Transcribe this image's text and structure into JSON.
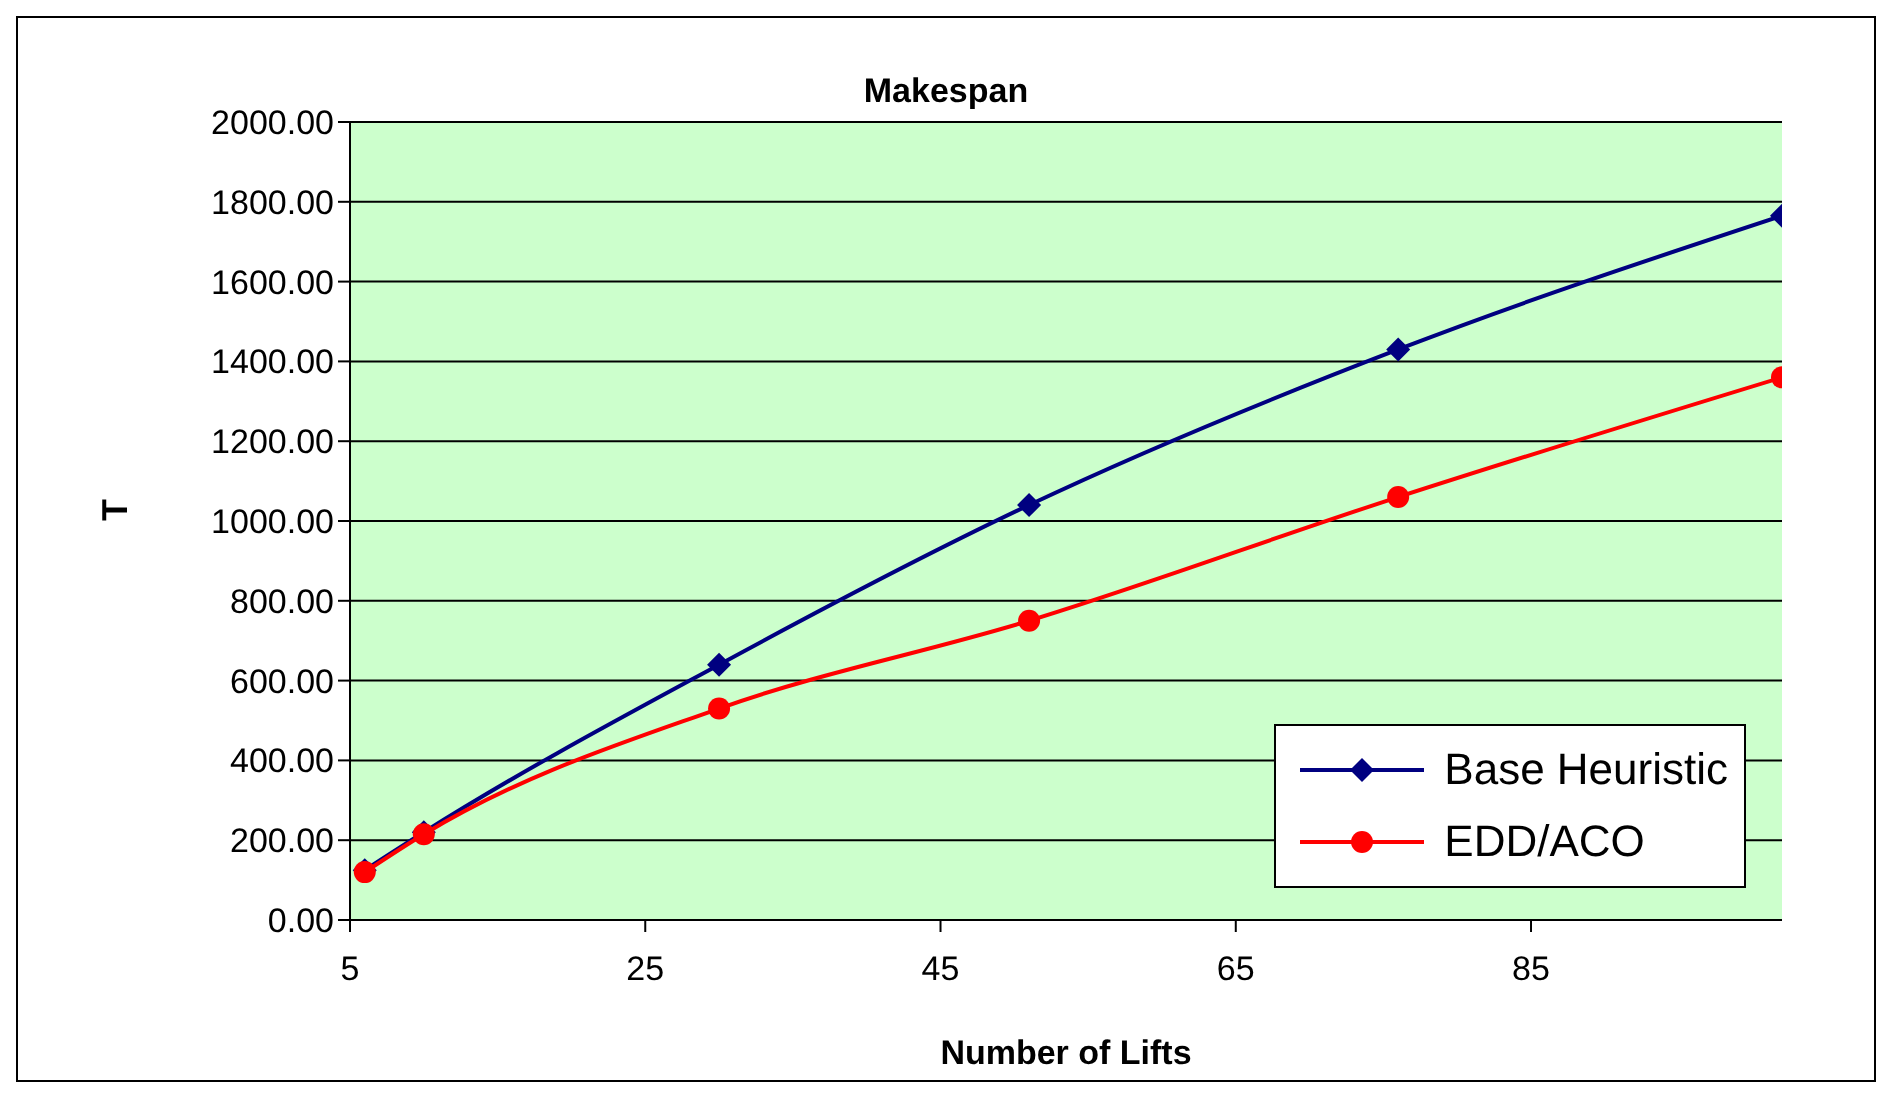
{
  "chart_data": {
    "type": "line",
    "title": "Makespan",
    "xlabel": "Number of Lifts",
    "ylabel": "T",
    "x": [
      6,
      10,
      30,
      51,
      76,
      102
    ],
    "series": [
      {
        "name": "Base Heuristic",
        "color": "#000080",
        "marker": "diamond",
        "values": [
          125,
          220,
          640,
          1040,
          1430,
          1765
        ]
      },
      {
        "name": "EDD/ACO",
        "color": "#ff0000",
        "marker": "circle",
        "values": [
          120,
          215,
          530,
          750,
          1060,
          1360
        ]
      }
    ],
    "xlim": [
      5,
      102
    ],
    "xticks": [
      5,
      25,
      45,
      65,
      85
    ],
    "ylim": [
      0,
      2000
    ],
    "yticks": [
      {
        "value": 0,
        "label": "0.00"
      },
      {
        "value": 200,
        "label": "200.00"
      },
      {
        "value": 400,
        "label": "400.00"
      },
      {
        "value": 600,
        "label": "600.00"
      },
      {
        "value": 800,
        "label": "800.00"
      },
      {
        "value": 1000,
        "label": "1000.00"
      },
      {
        "value": 1200,
        "label": "1200.00"
      },
      {
        "value": 1400,
        "label": "1400.00"
      },
      {
        "value": 1600,
        "label": "1600.00"
      },
      {
        "value": 1800,
        "label": "1800.00"
      },
      {
        "value": 2000,
        "label": "2000.00"
      }
    ],
    "grid": "y",
    "legend": "bottom right"
  }
}
